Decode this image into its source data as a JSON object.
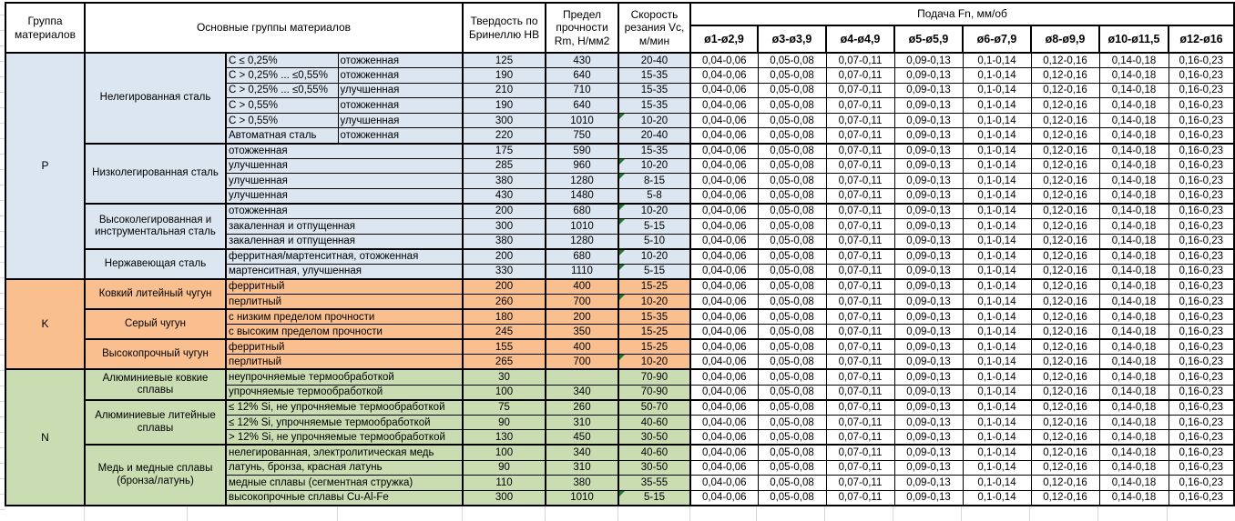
{
  "table": {
    "header": {
      "group_col": "Группа материалов",
      "materials_col": "Основные группы материалов",
      "hardness_col": "Твердость по Бринеллю HB",
      "strength_col": "Предел прочности Rm, Н/мм2",
      "speed_col": "Скорость резания Vc, м/мин",
      "feed_title": "Подача Fn, мм/об",
      "feed_cols": [
        "ø1-ø2,9",
        "ø3-ø3,9",
        "ø4-ø4,9",
        "ø5-ø5,9",
        "ø6-ø7,9",
        "ø8-ø9,9",
        "ø10-ø11,5",
        "ø12-ø16"
      ]
    },
    "feed_values": [
      "0,04-0,06",
      "0,05-0,08",
      "0,07-0,11",
      "0,09-0,13",
      "0,1-0,14",
      "0,12-0,16",
      "0,14-0,18",
      "0,16-0,23"
    ],
    "colors": {
      "note_triangle": "#1e7b34"
    },
    "groups": [
      {
        "letter": "P",
        "color": "#dce6f1",
        "subgroups": [
          {
            "name": "Нелегированная сталь",
            "rows": [
              {
                "sub1": "С ≤ 0,25%",
                "sub2": "отожженная",
                "hb": "125",
                "rm": "430",
                "vc": "20-40",
                "note": false
              },
              {
                "sub1": "С > 0,25% ... ≤0,55%",
                "sub2": "отожженная",
                "hb": "190",
                "rm": "640",
                "vc": "15-35",
                "note": false
              },
              {
                "sub1": "С > 0,25% ... ≤0,55%",
                "sub2": "улучшенная",
                "hb": "210",
                "rm": "710",
                "vc": "15-35",
                "note": false
              },
              {
                "sub1": "С > 0,55%",
                "sub2": "отожженная",
                "hb": "190",
                "rm": "640",
                "vc": "15-35",
                "note": false
              },
              {
                "sub1": "С > 0,55%",
                "sub2": "улучшенная",
                "hb": "300",
                "rm": "1010",
                "vc": "10-20",
                "note": true
              },
              {
                "sub1": "Автоматная сталь",
                "sub2": "отожженная",
                "hb": "220",
                "rm": "750",
                "vc": "20-40",
                "note": false
              }
            ]
          },
          {
            "name": "Низколегированная сталь",
            "rows": [
              {
                "material": "отожженная",
                "hb": "175",
                "rm": "590",
                "vc": "15-35",
                "note": false
              },
              {
                "material": "улучшенная",
                "hb": "285",
                "rm": "960",
                "vc": "10-20",
                "note": true
              },
              {
                "material": "улучшенная",
                "hb": "380",
                "rm": "1280",
                "vc": "8-15",
                "note": true
              },
              {
                "material": "улучшенная",
                "hb": "430",
                "rm": "1480",
                "vc": "5-8",
                "note": false
              }
            ]
          },
          {
            "name": "Высоколегированная и инструментальная сталь",
            "rows": [
              {
                "material": "отожженная",
                "hb": "200",
                "rm": "680",
                "vc": "10-20",
                "note": true
              },
              {
                "material": "закаленная и отпущенная",
                "hb": "300",
                "rm": "1010",
                "vc": "5-15",
                "note": true
              },
              {
                "material": "закаленная и отпущенная",
                "hb": "380",
                "rm": "1280",
                "vc": "5-10",
                "note": false
              }
            ]
          },
          {
            "name": "Нержавеющая сталь",
            "rows": [
              {
                "material": "ферритная/мартенситная, отожженная",
                "hb": "200",
                "rm": "680",
                "vc": "10-20",
                "note": true
              },
              {
                "material": "мартенситная, улучшенная",
                "hb": "330",
                "rm": "1110",
                "vc": "5-15",
                "note": true
              }
            ]
          }
        ]
      },
      {
        "letter": "K",
        "color": "#fabf8f",
        "subgroups": [
          {
            "name": "Ковкий литейный чугун",
            "rows": [
              {
                "material": "ферритный",
                "hb": "200",
                "rm": "400",
                "vc": "15-25",
                "note": false
              },
              {
                "material": "перлитный",
                "hb": "260",
                "rm": "700",
                "vc": "10-20",
                "note": true
              }
            ]
          },
          {
            "name": "Серый чугун",
            "rows": [
              {
                "material": "с низким пределом прочности",
                "hb": "180",
                "rm": "200",
                "vc": "15-35",
                "note": false
              },
              {
                "material": "с высоким пределом прочности",
                "hb": "245",
                "rm": "350",
                "vc": "15-25",
                "note": false
              }
            ]
          },
          {
            "name": "Высокопрочный чугун",
            "rows": [
              {
                "material": "ферритный",
                "hb": "155",
                "rm": "400",
                "vc": "15-25",
                "note": false
              },
              {
                "material": "перлитный",
                "hb": "265",
                "rm": "700",
                "vc": "10-20",
                "note": true
              }
            ]
          }
        ]
      },
      {
        "letter": "N",
        "color": "#c9dcb2",
        "subgroups": [
          {
            "name": "Алюминиевые ковкие сплавы",
            "rows": [
              {
                "material": "неупрочняемые термообработкой",
                "hb": "30",
                "rm": "",
                "vc": "70-90",
                "note": false
              },
              {
                "material": "упрочняемые термообработкой",
                "hb": "100",
                "rm": "340",
                "vc": "70-90",
                "note": false
              }
            ]
          },
          {
            "name": "Алюминиевые литейные сплавы",
            "rows": [
              {
                "material": "≤ 12% Si, не упрочняемые термообработкой",
                "hb": "75",
                "rm": "260",
                "vc": "50-70",
                "note": false
              },
              {
                "material": "≤ 12% Si, упрочняемые термообработкой",
                "hb": "90",
                "rm": "310",
                "vc": "40-60",
                "note": false
              },
              {
                "material": "> 12% Si, не упрочняемые термообработкой",
                "hb": "130",
                "rm": "450",
                "vc": "30-50",
                "note": false
              }
            ]
          },
          {
            "name": "Медь и медные сплавы (бронза/латунь)",
            "rows": [
              {
                "material": "нелегированная, электролитическая медь",
                "hb": "100",
                "rm": "340",
                "vc": "40-60",
                "note": false
              },
              {
                "material": "латунь, бронза, красная латунь",
                "hb": "90",
                "rm": "310",
                "vc": "30-50",
                "note": false
              },
              {
                "material": "медные сплавы (сегментная стружка)",
                "hb": "110",
                "rm": "380",
                "vc": "35-55",
                "note": false
              },
              {
                "material": "высокопрочные сплавы Cu-Al-Fe",
                "hb": "300",
                "rm": "1010",
                "vc": "5-15",
                "note": true
              }
            ]
          }
        ]
      }
    ]
  }
}
